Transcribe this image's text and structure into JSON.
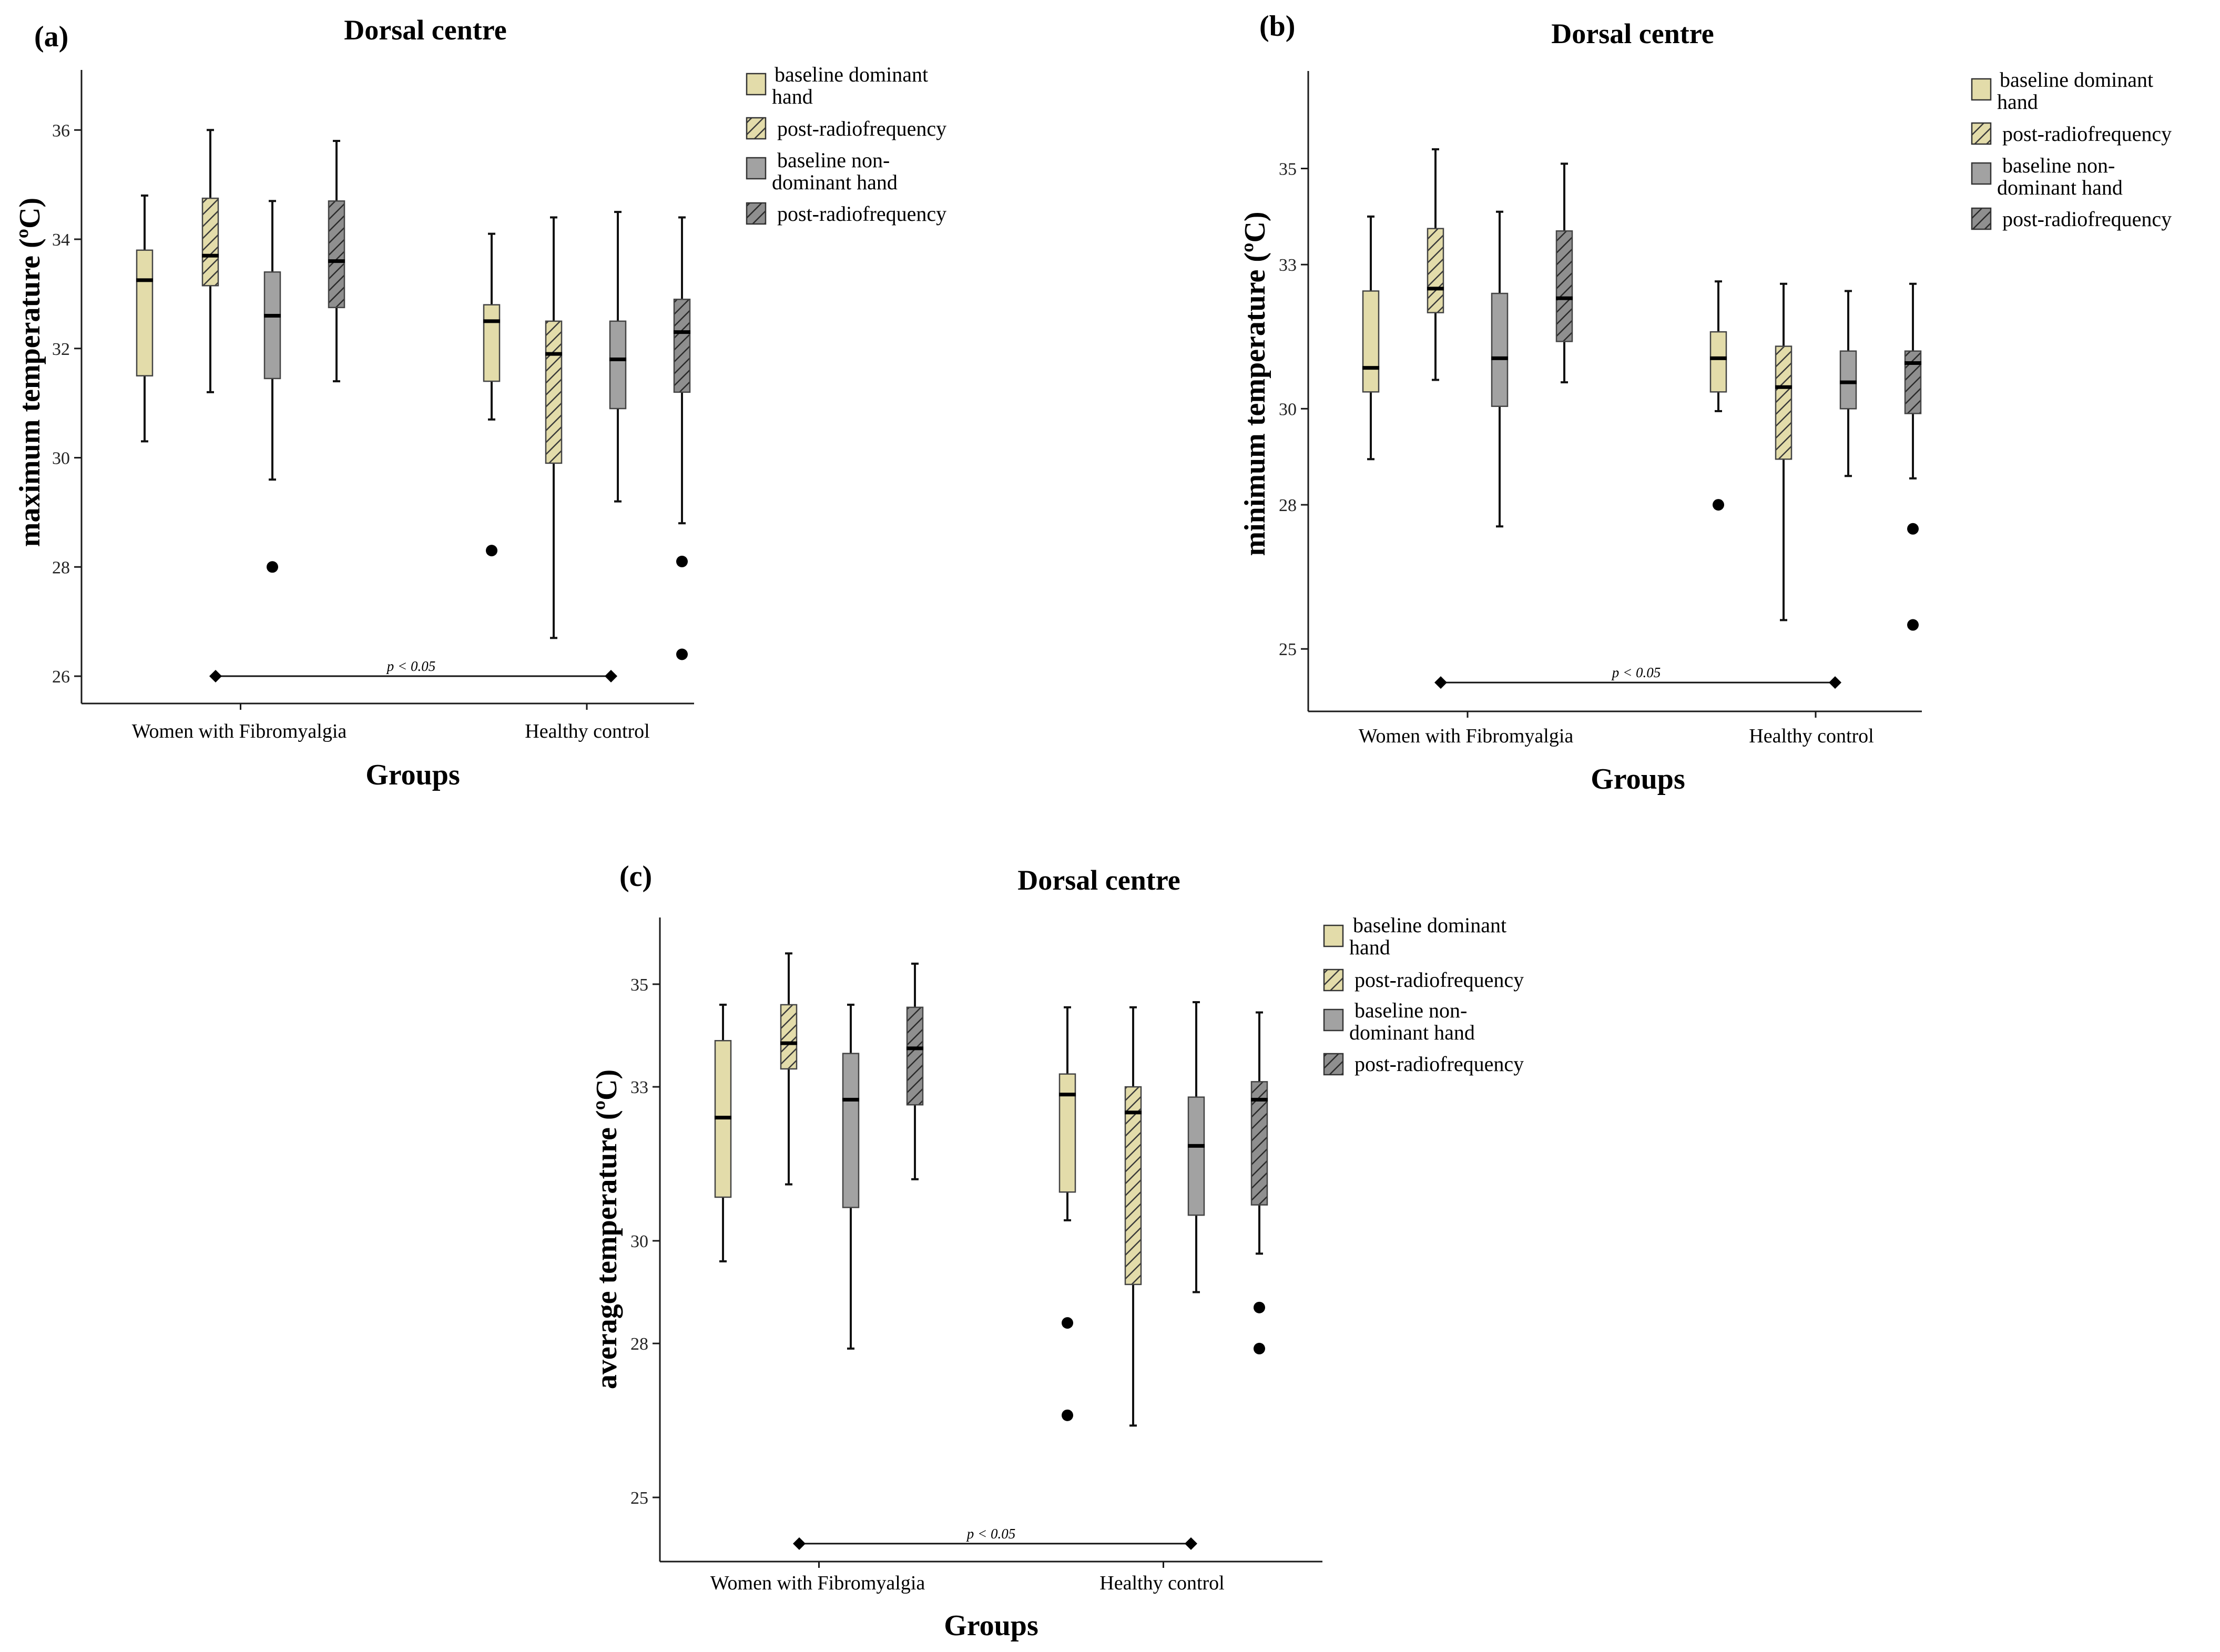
{
  "colors": {
    "baseline_dominant": "#e3dcaa",
    "post_rf_dominant": "#e3dcaa",
    "baseline_nondominant": "#a2a2a2",
    "post_rf_nondominant": "#8f8f8f",
    "hatch": "#3a3a3a",
    "axis": "#1a1a1a"
  },
  "chart_data": [
    {
      "panel": "(a)",
      "type": "boxplot",
      "title": "Dorsal centre",
      "xlabel": "Groups",
      "ylabel": "maximum temperature (ºC)",
      "ylim": [
        25.5,
        37.1
      ],
      "yticks": [
        26,
        28,
        30,
        32,
        34,
        36
      ],
      "ytick_labels": [
        "26",
        "28",
        "30",
        "32",
        "34",
        "36"
      ],
      "categories": [
        "Women with Fibromyalgia",
        "Healthy control"
      ],
      "legend": [
        "baseline dominant hand",
        "post-radiofrequency",
        "baseline non-dominant hand",
        "post-radiofrequency"
      ],
      "legend_position": "top-right",
      "significance": {
        "label": "p < 0.05",
        "y": 26.0
      },
      "series": [
        {
          "boxes": [
            {
              "min": 30.3,
              "q1": 31.5,
              "median": 33.25,
              "q3": 33.8,
              "max": 34.8,
              "outliers": []
            },
            {
              "min": 30.7,
              "q1": 31.4,
              "median": 32.5,
              "q3": 32.8,
              "max": 34.1,
              "outliers": [
                28.3
              ]
            }
          ]
        },
        {
          "boxes": [
            {
              "min": 31.2,
              "q1": 33.15,
              "median": 33.7,
              "q3": 34.75,
              "max": 36.0,
              "outliers": []
            },
            {
              "min": 26.7,
              "q1": 29.9,
              "median": 31.9,
              "q3": 32.5,
              "max": 34.4,
              "outliers": []
            }
          ]
        },
        {
          "boxes": [
            {
              "min": 29.6,
              "q1": 31.45,
              "median": 32.6,
              "q3": 33.4,
              "max": 34.7,
              "outliers": [
                28.0
              ]
            },
            {
              "min": 29.2,
              "q1": 30.9,
              "median": 31.8,
              "q3": 32.5,
              "max": 34.5,
              "outliers": []
            }
          ]
        },
        {
          "boxes": [
            {
              "min": 31.4,
              "q1": 32.75,
              "median": 33.6,
              "q3": 34.7,
              "max": 35.8,
              "outliers": []
            },
            {
              "min": 28.8,
              "q1": 31.2,
              "median": 32.3,
              "q3": 32.9,
              "max": 34.4,
              "outliers": [
                28.1,
                26.4
              ]
            }
          ]
        }
      ]
    },
    {
      "panel": "(b)",
      "type": "boxplot",
      "title": "Dorsal centre",
      "xlabel": "Groups",
      "ylabel": "minimum temperature (ºC)",
      "ylim": [
        23.7,
        37.03
      ],
      "yticks": [
        25,
        28,
        30,
        33,
        35
      ],
      "ytick_labels": [
        "25",
        "28",
        "30",
        "33",
        "35"
      ],
      "categories": [
        "Women with Fibromyalgia",
        "Healthy control"
      ],
      "legend": [
        "baseline dominant hand",
        "post-radiofrequency",
        "baseline non-dominant hand",
        "post-radiofrequency"
      ],
      "legend_position": "top-right",
      "significance": {
        "label": "p < 0.05",
        "y": 24.3
      },
      "series": [
        {
          "boxes": [
            {
              "min": 28.95,
              "q1": 30.35,
              "median": 30.85,
              "q3": 32.45,
              "max": 34.0,
              "outliers": []
            },
            {
              "min": 29.95,
              "q1": 30.35,
              "median": 31.05,
              "q3": 31.6,
              "max": 32.65,
              "outliers": [
                28.0
              ]
            }
          ]
        },
        {
          "boxes": [
            {
              "min": 30.6,
              "q1": 32.0,
              "median": 32.5,
              "q3": 33.75,
              "max": 35.4,
              "outliers": []
            },
            {
              "min": 25.6,
              "q1": 28.95,
              "median": 30.45,
              "q3": 31.3,
              "max": 32.6,
              "outliers": []
            }
          ]
        },
        {
          "boxes": [
            {
              "min": 27.55,
              "q1": 30.05,
              "median": 31.05,
              "q3": 32.4,
              "max": 34.1,
              "outliers": []
            },
            {
              "min": 28.6,
              "q1": 30.0,
              "median": 30.55,
              "q3": 31.2,
              "max": 32.45,
              "outliers": []
            }
          ]
        },
        {
          "boxes": [
            {
              "min": 30.55,
              "q1": 31.4,
              "median": 32.3,
              "q3": 33.7,
              "max": 35.1,
              "outliers": []
            },
            {
              "min": 28.55,
              "q1": 29.9,
              "median": 30.95,
              "q3": 31.2,
              "max": 32.6,
              "outliers": [
                27.5,
                25.5
              ]
            }
          ]
        }
      ]
    },
    {
      "panel": "(c)",
      "type": "boxplot",
      "title": "Dorsal centre",
      "xlabel": "Groups",
      "ylabel": "average temperature (ºC)",
      "ylim": [
        23.75,
        36.3
      ],
      "yticks": [
        25,
        28,
        30,
        33,
        35
      ],
      "ytick_labels": [
        "25",
        "28",
        "30",
        "33",
        "35"
      ],
      "categories": [
        "Women with Fibromyalgia",
        "Healthy control"
      ],
      "legend": [
        "baseline dominant hand",
        "post-radiofrequency",
        "baseline non-dominant hand",
        "post-radiofrequency"
      ],
      "legend_position": "top-right",
      "significance": {
        "label": "p < 0.05",
        "y": 24.1
      },
      "series": [
        {
          "boxes": [
            {
              "min": 29.6,
              "q1": 30.85,
              "median": 32.4,
              "q3": 33.9,
              "max": 34.6,
              "outliers": []
            },
            {
              "min": 30.4,
              "q1": 30.95,
              "median": 32.85,
              "q3": 33.25,
              "max": 34.55,
              "outliers": [
                28.4,
                26.6
              ]
            }
          ]
        },
        {
          "boxes": [
            {
              "min": 31.1,
              "q1": 33.35,
              "median": 33.85,
              "q3": 34.6,
              "max": 35.6,
              "outliers": []
            },
            {
              "min": 26.4,
              "q1": 29.15,
              "median": 32.5,
              "q3": 33.0,
              "max": 34.55,
              "outliers": []
            }
          ]
        },
        {
          "boxes": [
            {
              "min": 27.9,
              "q1": 30.65,
              "median": 32.75,
              "q3": 33.65,
              "max": 34.6,
              "outliers": []
            },
            {
              "min": 29.0,
              "q1": 30.5,
              "median": 31.85,
              "q3": 32.8,
              "max": 34.65,
              "outliers": []
            }
          ]
        },
        {
          "boxes": [
            {
              "min": 31.2,
              "q1": 32.65,
              "median": 33.75,
              "q3": 34.55,
              "max": 35.4,
              "outliers": []
            },
            {
              "min": 29.75,
              "q1": 30.7,
              "median": 32.75,
              "q3": 33.1,
              "max": 34.45,
              "outliers": [
                28.7,
                27.9
              ]
            }
          ]
        }
      ]
    }
  ]
}
